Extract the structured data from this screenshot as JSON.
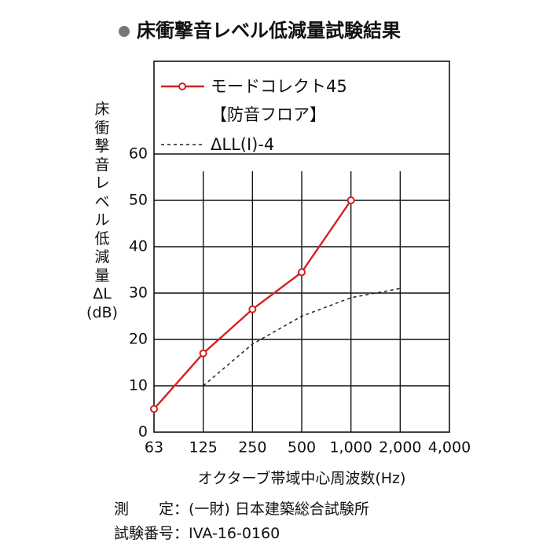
{
  "chart_data": {
    "type": "line",
    "title": "床衝撃音レベル低減量試験結果",
    "x_label": "オクターブ帯域中心周波数(Hz)",
    "y_label": "床\n衝\n撃\n音\nレ\nベ\nル\n低\n減\n量\nΔL\n(dB)",
    "categories": [
      "63",
      "125",
      "250",
      "500",
      "1,000",
      "2,000",
      "4,000"
    ],
    "series": [
      {
        "name": "モードコレクト45\n【防音フロア】",
        "color": "#d42020",
        "style": "solid-marker",
        "values": [
          5,
          17,
          26.5,
          34.5,
          50,
          null,
          null
        ]
      },
      {
        "name": "ΔLL(I)-4",
        "color": "#222222",
        "style": "dashed",
        "values": [
          null,
          10,
          19,
          25,
          29,
          31,
          null
        ]
      }
    ],
    "ylim": [
      0,
      80
    ],
    "yticks": [
      0,
      10,
      20,
      30,
      40,
      50,
      60
    ],
    "grid": true,
    "legend": "upper left",
    "notes": [
      "測　　定：(一財) 日本建築総合試験所",
      "試験番号：IVA-16-0160"
    ]
  }
}
